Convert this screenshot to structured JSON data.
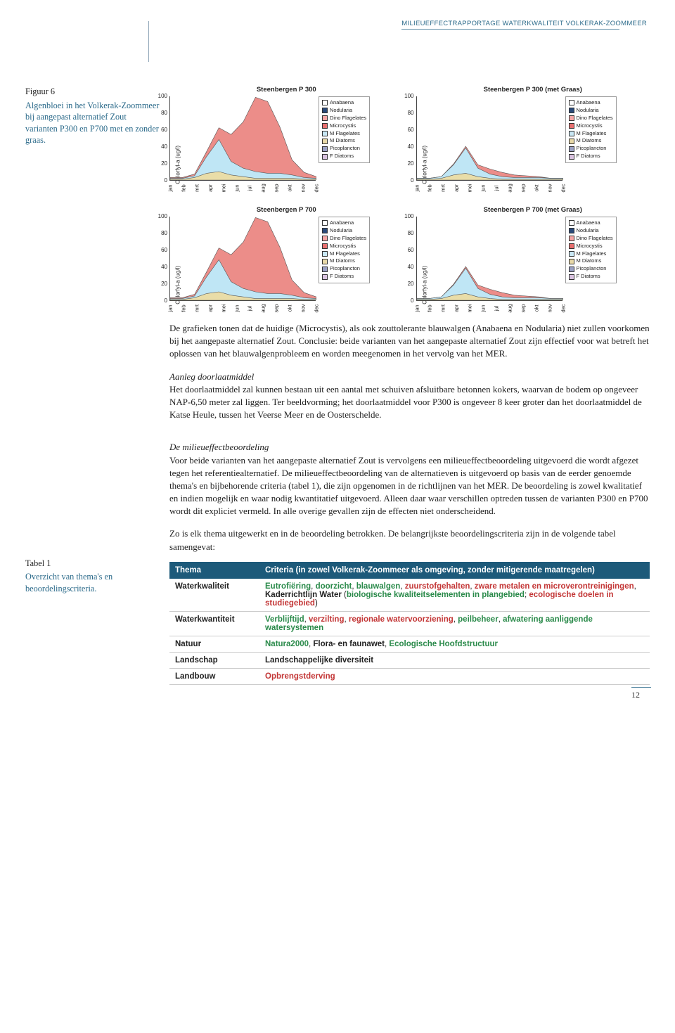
{
  "header": {
    "title": "MILIEUEFFECTRAPPORTAGE WATERKWALITEIT VOLKERAK-ZOOMMEER"
  },
  "figure6": {
    "label": "Figuur 6",
    "caption": "Algenbloei in het Volkerak-Zoommeer bij aangepast alternatief Zout varianten P300 en P700 met en zonder graas."
  },
  "chart_common": {
    "ylabel": "Chlorfyl-a (ug/l)",
    "ylim": [
      0,
      100
    ],
    "yticks": [
      0,
      20,
      40,
      60,
      80,
      100
    ],
    "xticks": [
      "jan",
      "feb",
      "mrt",
      "apr",
      "mei",
      "jun",
      "jul",
      "aug",
      "sep",
      "okt",
      "nov",
      "dec"
    ],
    "legend": [
      {
        "label": "Anabaena",
        "color": "#ffffff"
      },
      {
        "label": "Nodularia",
        "color": "#2a4a7a"
      },
      {
        "label": "Dino Flagelates",
        "color": "#f5a6a6"
      },
      {
        "label": "Microcystis",
        "color": "#e86f6f"
      },
      {
        "label": "M Flagelates",
        "color": "#c9e8f5"
      },
      {
        "label": "M Diatoms",
        "color": "#e8d9a8"
      },
      {
        "label": "Picoplancton",
        "color": "#9aa0c4"
      },
      {
        "label": "F Diatoms",
        "color": "#d9c2e0"
      }
    ]
  },
  "charts": [
    {
      "id": "p300",
      "title": "Steenbergen P 300",
      "profile": "high"
    },
    {
      "id": "p300_graas",
      "title": "Steenbergen P 300 (met Graas)",
      "profile": "low"
    },
    {
      "id": "p700",
      "title": "Steenbergen P 700",
      "profile": "high"
    },
    {
      "id": "p700_graas",
      "title": "Steenbergen P 700 (met Graas)",
      "profile": "low"
    }
  ],
  "profiles": {
    "high": {
      "microcystis": [
        1,
        1,
        2,
        6,
        14,
        32,
        55,
        88,
        85,
        55,
        18,
        6,
        2
      ],
      "mflagelates": [
        1,
        1,
        2,
        20,
        38,
        16,
        10,
        8,
        6,
        6,
        4,
        2,
        1
      ],
      "mdiatoms": [
        1,
        1,
        3,
        8,
        10,
        6,
        4,
        2,
        2,
        2,
        2,
        1,
        1
      ]
    },
    "low": {
      "microcystis": [
        0,
        0,
        0,
        1,
        2,
        4,
        6,
        5,
        3,
        2,
        1,
        0,
        0
      ],
      "mflagelates": [
        1,
        1,
        2,
        12,
        30,
        10,
        5,
        3,
        2,
        2,
        2,
        1,
        1
      ],
      "mdiatoms": [
        1,
        1,
        2,
        6,
        8,
        4,
        2,
        1,
        1,
        1,
        1,
        1,
        1
      ]
    }
  },
  "colors": {
    "microcystis": "#ec8d89",
    "mflagelates": "#bfe6f5",
    "mdiatoms": "#e9dda8",
    "stroke": "#555"
  },
  "body": {
    "p1": "De grafieken tonen dat de huidige (Microcystis), als ook zouttolerante blauwalgen (Anabaena en Nodularia) niet zullen voorkomen bij het aangepaste alternatief Zout. Conclusie: beide varianten van het aangepaste alternatief Zout zijn effectief voor wat betreft het oplossen van het blauwalgenprobleem en worden meegenomen in het vervolg van het MER.",
    "h2": "Aanleg doorlaatmiddel",
    "p2": "Het doorlaatmiddel zal kunnen bestaan uit een aantal met schuiven afsluitbare betonnen kokers, waarvan de bodem op ongeveer NAP-6,50 meter zal liggen. Ter beeldvorming; het doorlaatmiddel voor P300 is ongeveer 8 keer groter dan het doorlaatmiddel de Katse Heule, tussen het Veerse Meer en de Oosterschelde.",
    "h3": "De milieueffectbeoordeling",
    "p3": "Voor beide varianten van het aangepaste alternatief Zout is vervolgens een milieueffectbeoordeling uitgevoerd die wordt afgezet tegen het referentiealternatief. De milieueffectbeoordeling van de alternatieven is uitgevoerd op basis van de eerder genoemde thema's en bijbehorende criteria (tabel 1), die zijn opgenomen in de richtlijnen van het MER. De beoordeling is zowel kwalitatief en indien mogelijk en waar nodig kwantitatief uitgevoerd. Alleen daar waar verschillen optreden tussen de varianten P300 en P700 wordt dit expliciet vermeld. In alle overige gevallen zijn de effecten niet onderscheidend.",
    "p4": "Zo is elk thema uitgewerkt en in de beoordeling betrokken. De belangrijkste beoordelingscriteria zijn in de volgende tabel samengevat:"
  },
  "table1_side": {
    "label": "Tabel 1",
    "caption": "Overzicht van thema's en beoordelingscriteria."
  },
  "table1": {
    "headers": [
      "Thema",
      "Criteria (in zowel Volkerak-Zoommeer als omgeving, zonder mitigerende maatregelen)"
    ],
    "rows": [
      {
        "theme": "Waterkwaliteit",
        "parts": [
          {
            "t": "Eutrofiëring",
            "c": "green"
          },
          {
            "t": ", ",
            "c": "plain"
          },
          {
            "t": "doorzicht",
            "c": "green"
          },
          {
            "t": ", ",
            "c": "plain"
          },
          {
            "t": "blauwalgen",
            "c": "green"
          },
          {
            "t": ", ",
            "c": "plain"
          },
          {
            "t": "zuurstofgehalten",
            "c": "red"
          },
          {
            "t": ", ",
            "c": "plain"
          },
          {
            "t": "zware metalen en microverontreinigingen",
            "c": "red"
          },
          {
            "t": ", ",
            "c": "plain"
          },
          {
            "t": "Kaderrichtlijn Water",
            "c": "plain2"
          },
          {
            "t": " (",
            "c": "plain"
          },
          {
            "t": "biologische kwaliteitselementen in plangebied",
            "c": "green"
          },
          {
            "t": "; ",
            "c": "plain"
          },
          {
            "t": "ecologische doelen in studiegebied",
            "c": "red"
          },
          {
            "t": ")",
            "c": "plain"
          }
        ]
      },
      {
        "theme": "Waterkwantiteit",
        "parts": [
          {
            "t": "Verblijftijd",
            "c": "green"
          },
          {
            "t": ", ",
            "c": "plain"
          },
          {
            "t": "verzilting",
            "c": "red"
          },
          {
            "t": ", ",
            "c": "plain"
          },
          {
            "t": "regionale watervoorziening",
            "c": "red"
          },
          {
            "t": ", ",
            "c": "plain"
          },
          {
            "t": "peilbeheer",
            "c": "green"
          },
          {
            "t": ", ",
            "c": "plain"
          },
          {
            "t": "afwatering aanliggende watersystemen",
            "c": "green"
          }
        ]
      },
      {
        "theme": "Natuur",
        "parts": [
          {
            "t": "Natura2000",
            "c": "green"
          },
          {
            "t": ", ",
            "c": "plain"
          },
          {
            "t": "Flora- en faunawet",
            "c": "plain2"
          },
          {
            "t": ", ",
            "c": "plain"
          },
          {
            "t": "Ecologische Hoofdstructuur",
            "c": "green"
          }
        ]
      },
      {
        "theme": "Landschap",
        "parts": [
          {
            "t": "Landschappelijke diversiteit",
            "c": "plain2"
          }
        ]
      },
      {
        "theme": "Landbouw",
        "parts": [
          {
            "t": "Opbrengstderving",
            "c": "red"
          }
        ]
      }
    ]
  },
  "page_number": "12"
}
